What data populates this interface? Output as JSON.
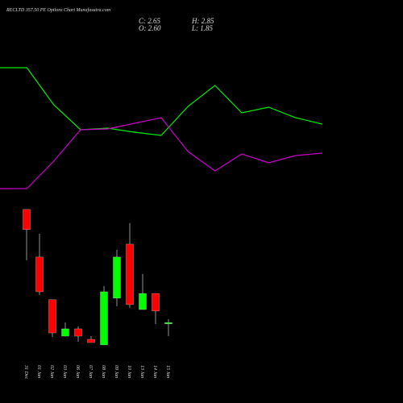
{
  "chart_data": [
    {
      "type": "line",
      "title": "RECLTD 357.50 PE Options Chart Munafasutra.com",
      "categories": [
        null,
        null,
        null,
        null,
        null,
        null,
        null,
        null,
        null,
        null,
        null,
        null,
        null
      ],
      "ylim": [
        0,
        250
      ],
      "series": [
        {
          "color": "#00ee00",
          "values": [
            166,
            166,
            120,
            89,
            91,
            86,
            82,
            118,
            144,
            110,
            117,
            104,
            96
          ]
        },
        {
          "color": "#cc00cc",
          "values": [
            16,
            16,
            50,
            89,
            90,
            97,
            104,
            62,
            38,
            59,
            48,
            57,
            60
          ]
        }
      ]
    },
    {
      "type": "candlestick",
      "info": [
        "C: 2.65",
        "H: 2.85",
        "O: 2.60",
        "L: 1.85"
      ],
      "categories": [
        "31 Dec",
        "01 Jan",
        "02 Jan",
        "03 Jan",
        "06 Jan",
        "07 Jan",
        "08 Jan",
        "09 Jan",
        "10 Jan",
        "13 Jan",
        "14 Jan",
        "15 Jan"
      ],
      "open": [
        9.33,
        6.52,
        4.0,
        1.85,
        2.28,
        1.66,
        1.33,
        4.09,
        7.28,
        3.42,
        4.37,
        2.6
      ],
      "high": [
        9.33,
        7.9,
        4.0,
        2.66,
        2.42,
        1.85,
        4.8,
        6.95,
        8.52,
        5.52,
        4.37,
        2.85
      ],
      "low": [
        6.33,
        4.28,
        1.8,
        1.85,
        1.52,
        1.47,
        1.33,
        3.61,
        3.52,
        3.42,
        2.56,
        1.85
      ],
      "close": [
        8.14,
        4.47,
        2.04,
        2.28,
        1.85,
        1.47,
        4.47,
        6.52,
        3.71,
        4.37,
        3.33,
        2.65
      ],
      "up_color": "#00ff00",
      "down_color": "#ff0000",
      "ylim": [
        0.28,
        9.8
      ]
    }
  ]
}
